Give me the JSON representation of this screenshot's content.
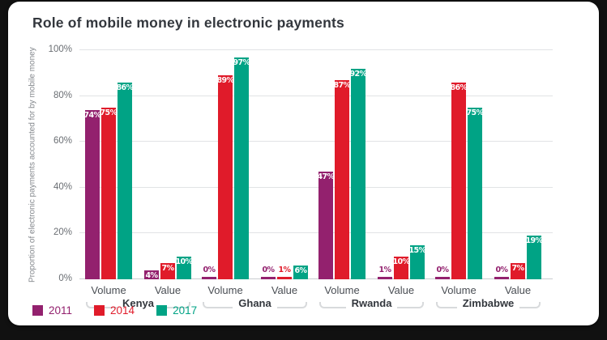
{
  "card": {
    "title": "Role of mobile money in electronic payments"
  },
  "chart_data": {
    "type": "bar",
    "title": "Role of mobile money in electronic payments",
    "ylabel": "Proportion of electronic payments accounted for by mobile money",
    "ylim": [
      0,
      100
    ],
    "yticks": [
      0,
      20,
      40,
      60,
      80,
      100
    ],
    "ytick_labels": [
      "0%",
      "20%",
      "40%",
      "60%",
      "80%",
      "100%"
    ],
    "grid": true,
    "legend_position": "bottom-left",
    "value_suffix": "%",
    "colors": {
      "grid_line": "#E1E3E5",
      "axis_text": "#6A6E73",
      "title_text": "#33373D",
      "inside_label_text": "#FFFFFF"
    },
    "series": [
      {
        "name": "2011",
        "color": "#93216E"
      },
      {
        "name": "2014",
        "color": "#E01B2A"
      },
      {
        "name": "2017",
        "color": "#00A385"
      }
    ],
    "categories": [
      "Kenya",
      "Ghana",
      "Rwanda",
      "Zimbabwe"
    ],
    "subcategories": [
      "Volume",
      "Value"
    ],
    "groups": [
      {
        "country": "Kenya",
        "subgroups": [
          {
            "label": "Volume",
            "values": [
              74,
              75,
              86
            ]
          },
          {
            "label": "Value",
            "values": [
              4,
              7,
              10
            ]
          }
        ]
      },
      {
        "country": "Ghana",
        "subgroups": [
          {
            "label": "Volume",
            "values": [
              0,
              89,
              97
            ]
          },
          {
            "label": "Value",
            "values": [
              0,
              1,
              6
            ]
          }
        ]
      },
      {
        "country": "Rwanda",
        "subgroups": [
          {
            "label": "Volume",
            "values": [
              47,
              87,
              92
            ]
          },
          {
            "label": "Value",
            "values": [
              1,
              10,
              15
            ]
          }
        ]
      },
      {
        "country": "Zimbabwe",
        "subgroups": [
          {
            "label": "Volume",
            "values": [
              0,
              86,
              75
            ]
          },
          {
            "label": "Value",
            "values": [
              0,
              7,
              19
            ]
          }
        ]
      }
    ]
  }
}
